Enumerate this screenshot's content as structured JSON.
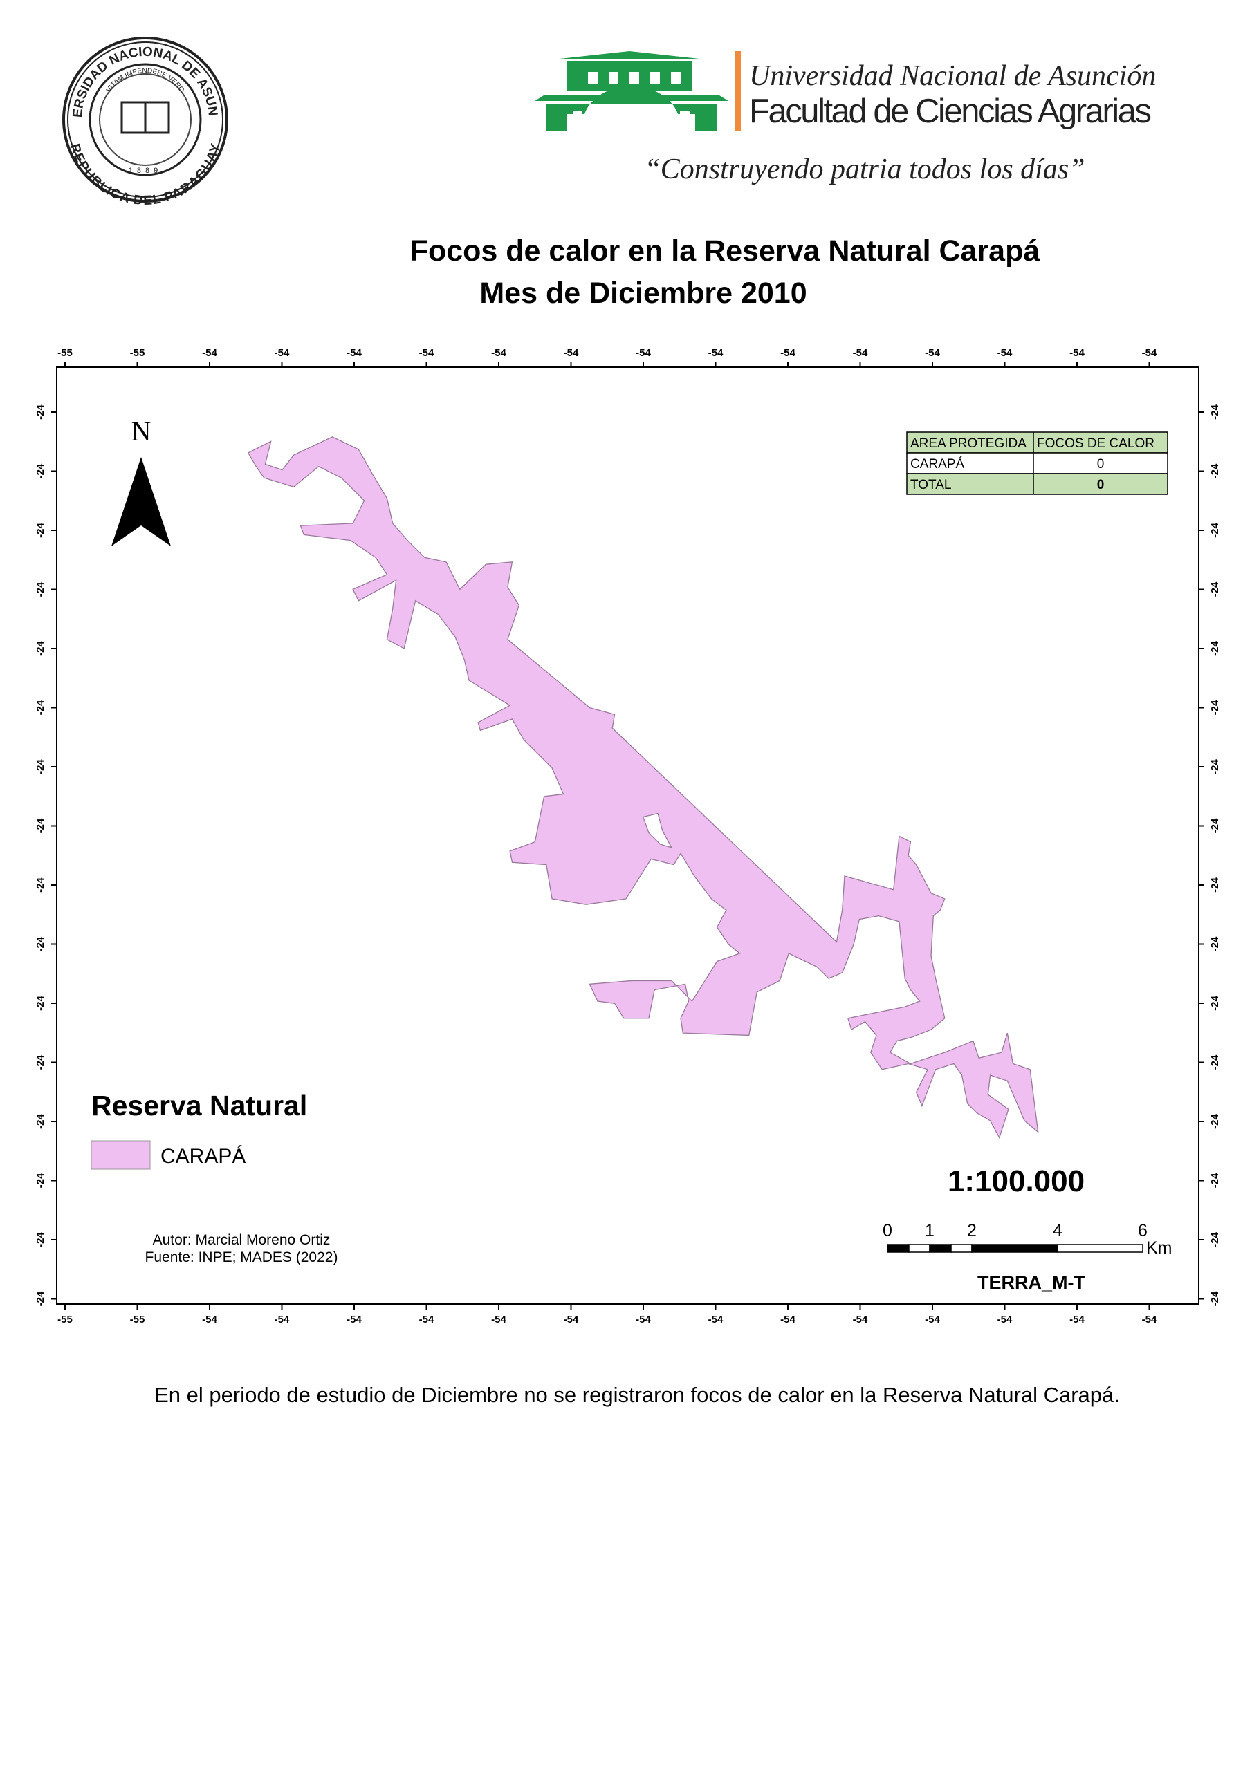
{
  "header": {
    "seal": {
      "outer_top": "UNIVERSIDAD NACIONAL DE ASUNCION",
      "inner": "VITAM IMPENDERE VERO",
      "outer_bottom": "REPUBLICA DEL PARAGUAY",
      "year": "1889"
    },
    "university": "Universidad Nacional de Asunción",
    "faculty": "Facultad de Ciencias Agrarias",
    "motto": "“Construyendo patria todos los días”"
  },
  "title": [
    "Focos de calor en la Reserva Natural Carapá",
    "Mes de Diciembre 2010"
  ],
  "map": {
    "top_ticks": [
      "-55",
      "-55",
      "-54",
      "-54",
      "-54",
      "-54",
      "-54",
      "-54",
      "-54",
      "-54",
      "-54",
      "-54",
      "-54",
      "-54",
      "-54",
      "-54"
    ],
    "bottom_ticks": [
      "-55",
      "-55",
      "-54",
      "-54",
      "-54",
      "-54",
      "-54",
      "-54",
      "-54",
      "-54",
      "-54",
      "-54",
      "-54",
      "-54",
      "-54",
      "-54"
    ],
    "left_ticks": [
      "-24",
      "-24",
      "-24",
      "-24",
      "-24",
      "-24",
      "-24",
      "-24",
      "-24",
      "-24",
      "-24",
      "-24",
      "-24",
      "-24",
      "-24",
      "-24"
    ],
    "right_ticks": [
      "-24",
      "-24",
      "-24",
      "-24",
      "-24",
      "-24",
      "-24",
      "-24",
      "-24",
      "-24",
      "-24",
      "-24",
      "-24",
      "-24",
      "-24",
      "-24"
    ],
    "north": "N",
    "table": {
      "header": [
        "AREA PROTEGIDA",
        "FOCOS DE CALOR"
      ],
      "rows": [
        [
          "CARAPÁ",
          "0"
        ],
        [
          "TOTAL",
          "0"
        ]
      ]
    },
    "legend": {
      "title": "Reserva Natural",
      "items": [
        {
          "label": "CARAPÁ",
          "color": "#efbff2"
        }
      ]
    },
    "scale": "1:100.000",
    "scale_bar": {
      "labels": [
        "0",
        "1",
        "2",
        "4",
        "6"
      ],
      "unit": "Km"
    },
    "satellite": "TERRA_M-T",
    "author": "Autor: Marcial Moreno Ortiz",
    "source": "Fuente: INPE; MADES (2022)"
  },
  "caption": "En el periodo de estudio de Diciembre no se registraron focos de calor en la Reserva Natural Carapá."
}
